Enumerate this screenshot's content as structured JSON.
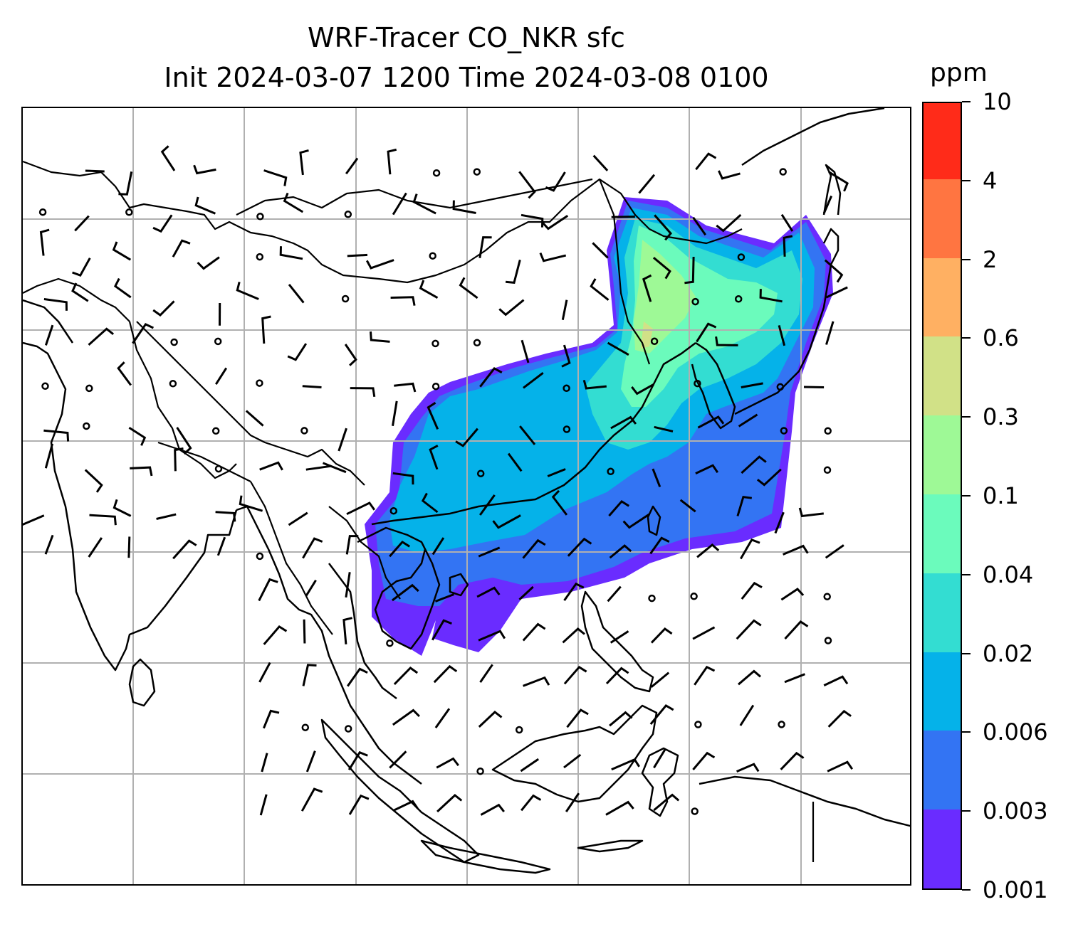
{
  "title": {
    "line1": "WRF-Tracer CO_NKR sfc",
    "line2": "Init 2024-03-07 1200 Time 2024-03-08 0100"
  },
  "colorbar": {
    "unit": "ppm",
    "levels": [
      "0.001",
      "0.003",
      "0.006",
      "0.02",
      "0.04",
      "0.1",
      "0.3",
      "0.6",
      "2",
      "4",
      "10"
    ],
    "colors": [
      "#6a2cff",
      "#3374f3",
      "#05b2e9",
      "#33ddd2",
      "#6bfbbc",
      "#9ef996",
      "#d1e187",
      "#ffb062",
      "#ff7541",
      "#ff2b19"
    ]
  },
  "map": {
    "gridlines": true,
    "features": [
      "coastlines",
      "country-borders",
      "wind-barbs",
      "tracer-concentration-fill"
    ]
  }
}
